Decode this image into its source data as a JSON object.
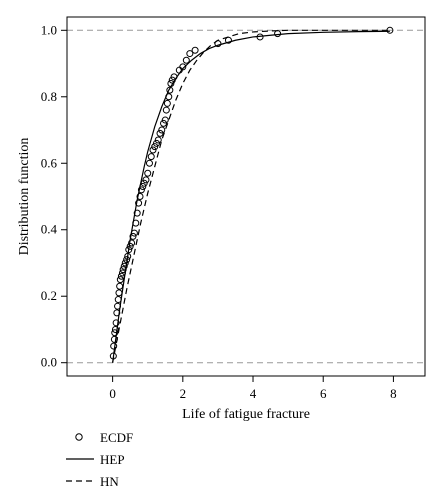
{
  "chart_data": {
    "type": "line",
    "xlabel": "Life of fatigue fracture",
    "ylabel": "Distribution function",
    "xlim": [
      -1.3,
      8.9
    ],
    "ylim": [
      -0.04,
      1.04
    ],
    "x_ticks": [
      "0",
      "2",
      "4",
      "6",
      "8"
    ],
    "y_ticks": [
      "0.0",
      "0.2",
      "0.4",
      "0.6",
      "0.8",
      "1.0"
    ],
    "reference_lines": [
      0,
      1
    ],
    "legend": {
      "placement": "bottom-left",
      "entries": [
        {
          "label": "ECDF",
          "style": "open-circle"
        },
        {
          "label": "HEP",
          "style": "solid-line"
        },
        {
          "label": "HN",
          "style": "dashed-line"
        }
      ]
    },
    "series": [
      {
        "name": "ECDF",
        "kind": "points",
        "points": [
          [
            0.02,
            0.02
          ],
          [
            0.03,
            0.05
          ],
          [
            0.05,
            0.07
          ],
          [
            0.06,
            0.09
          ],
          [
            0.08,
            0.1
          ],
          [
            0.1,
            0.12
          ],
          [
            0.12,
            0.15
          ],
          [
            0.14,
            0.17
          ],
          [
            0.16,
            0.19
          ],
          [
            0.18,
            0.21
          ],
          [
            0.2,
            0.23
          ],
          [
            0.22,
            0.25
          ],
          [
            0.25,
            0.26
          ],
          [
            0.28,
            0.27
          ],
          [
            0.3,
            0.28
          ],
          [
            0.33,
            0.29
          ],
          [
            0.36,
            0.3
          ],
          [
            0.4,
            0.31
          ],
          [
            0.43,
            0.32
          ],
          [
            0.46,
            0.34
          ],
          [
            0.5,
            0.35
          ],
          [
            0.54,
            0.36
          ],
          [
            0.58,
            0.38
          ],
          [
            0.62,
            0.39
          ],
          [
            0.66,
            0.42
          ],
          [
            0.7,
            0.45
          ],
          [
            0.74,
            0.48
          ],
          [
            0.78,
            0.5
          ],
          [
            0.82,
            0.52
          ],
          [
            0.86,
            0.53
          ],
          [
            0.9,
            0.54
          ],
          [
            0.95,
            0.55
          ],
          [
            1.0,
            0.57
          ],
          [
            1.05,
            0.6
          ],
          [
            1.1,
            0.62
          ],
          [
            1.15,
            0.64
          ],
          [
            1.2,
            0.65
          ],
          [
            1.25,
            0.66
          ],
          [
            1.3,
            0.67
          ],
          [
            1.35,
            0.69
          ],
          [
            1.4,
            0.7
          ],
          [
            1.45,
            0.72
          ],
          [
            1.5,
            0.73
          ],
          [
            1.53,
            0.76
          ],
          [
            1.56,
            0.78
          ],
          [
            1.6,
            0.8
          ],
          [
            1.63,
            0.82
          ],
          [
            1.66,
            0.84
          ],
          [
            1.7,
            0.85
          ],
          [
            1.75,
            0.86
          ],
          [
            1.9,
            0.88
          ],
          [
            2.0,
            0.89
          ],
          [
            2.1,
            0.91
          ],
          [
            2.2,
            0.93
          ],
          [
            2.35,
            0.94
          ],
          [
            3.0,
            0.96
          ],
          [
            3.3,
            0.97
          ],
          [
            4.2,
            0.98
          ],
          [
            4.7,
            0.99
          ],
          [
            7.9,
            1.0
          ]
        ]
      },
      {
        "name": "HEP",
        "kind": "line",
        "points": [
          [
            0,
            0
          ],
          [
            0.1,
            0.08
          ],
          [
            0.2,
            0.16
          ],
          [
            0.3,
            0.23
          ],
          [
            0.4,
            0.3
          ],
          [
            0.5,
            0.37
          ],
          [
            0.6,
            0.43
          ],
          [
            0.7,
            0.49
          ],
          [
            0.8,
            0.54
          ],
          [
            0.9,
            0.59
          ],
          [
            1.0,
            0.635
          ],
          [
            1.2,
            0.71
          ],
          [
            1.4,
            0.77
          ],
          [
            1.6,
            0.82
          ],
          [
            1.8,
            0.855
          ],
          [
            2.0,
            0.885
          ],
          [
            2.25,
            0.91
          ],
          [
            2.5,
            0.93
          ],
          [
            2.75,
            0.945
          ],
          [
            3.0,
            0.955
          ],
          [
            3.5,
            0.97
          ],
          [
            4.0,
            0.98
          ],
          [
            4.5,
            0.985
          ],
          [
            5.0,
            0.99
          ],
          [
            6.0,
            0.994
          ],
          [
            7.0,
            0.996
          ],
          [
            7.9,
            0.997
          ]
        ]
      },
      {
        "name": "HN",
        "kind": "line",
        "points": [
          [
            0,
            0
          ],
          [
            0.2,
            0.11
          ],
          [
            0.4,
            0.22
          ],
          [
            0.6,
            0.32
          ],
          [
            0.8,
            0.42
          ],
          [
            1.0,
            0.51
          ],
          [
            1.2,
            0.59
          ],
          [
            1.4,
            0.67
          ],
          [
            1.6,
            0.73
          ],
          [
            1.8,
            0.79
          ],
          [
            2.0,
            0.84
          ],
          [
            2.2,
            0.88
          ],
          [
            2.4,
            0.91
          ],
          [
            2.6,
            0.935
          ],
          [
            2.8,
            0.955
          ],
          [
            3.0,
            0.97
          ],
          [
            3.3,
            0.98
          ],
          [
            3.6,
            0.99
          ],
          [
            4.0,
            0.995
          ],
          [
            4.5,
            0.998
          ],
          [
            5.0,
            1.0
          ],
          [
            7.9,
            1.0
          ]
        ]
      }
    ]
  }
}
